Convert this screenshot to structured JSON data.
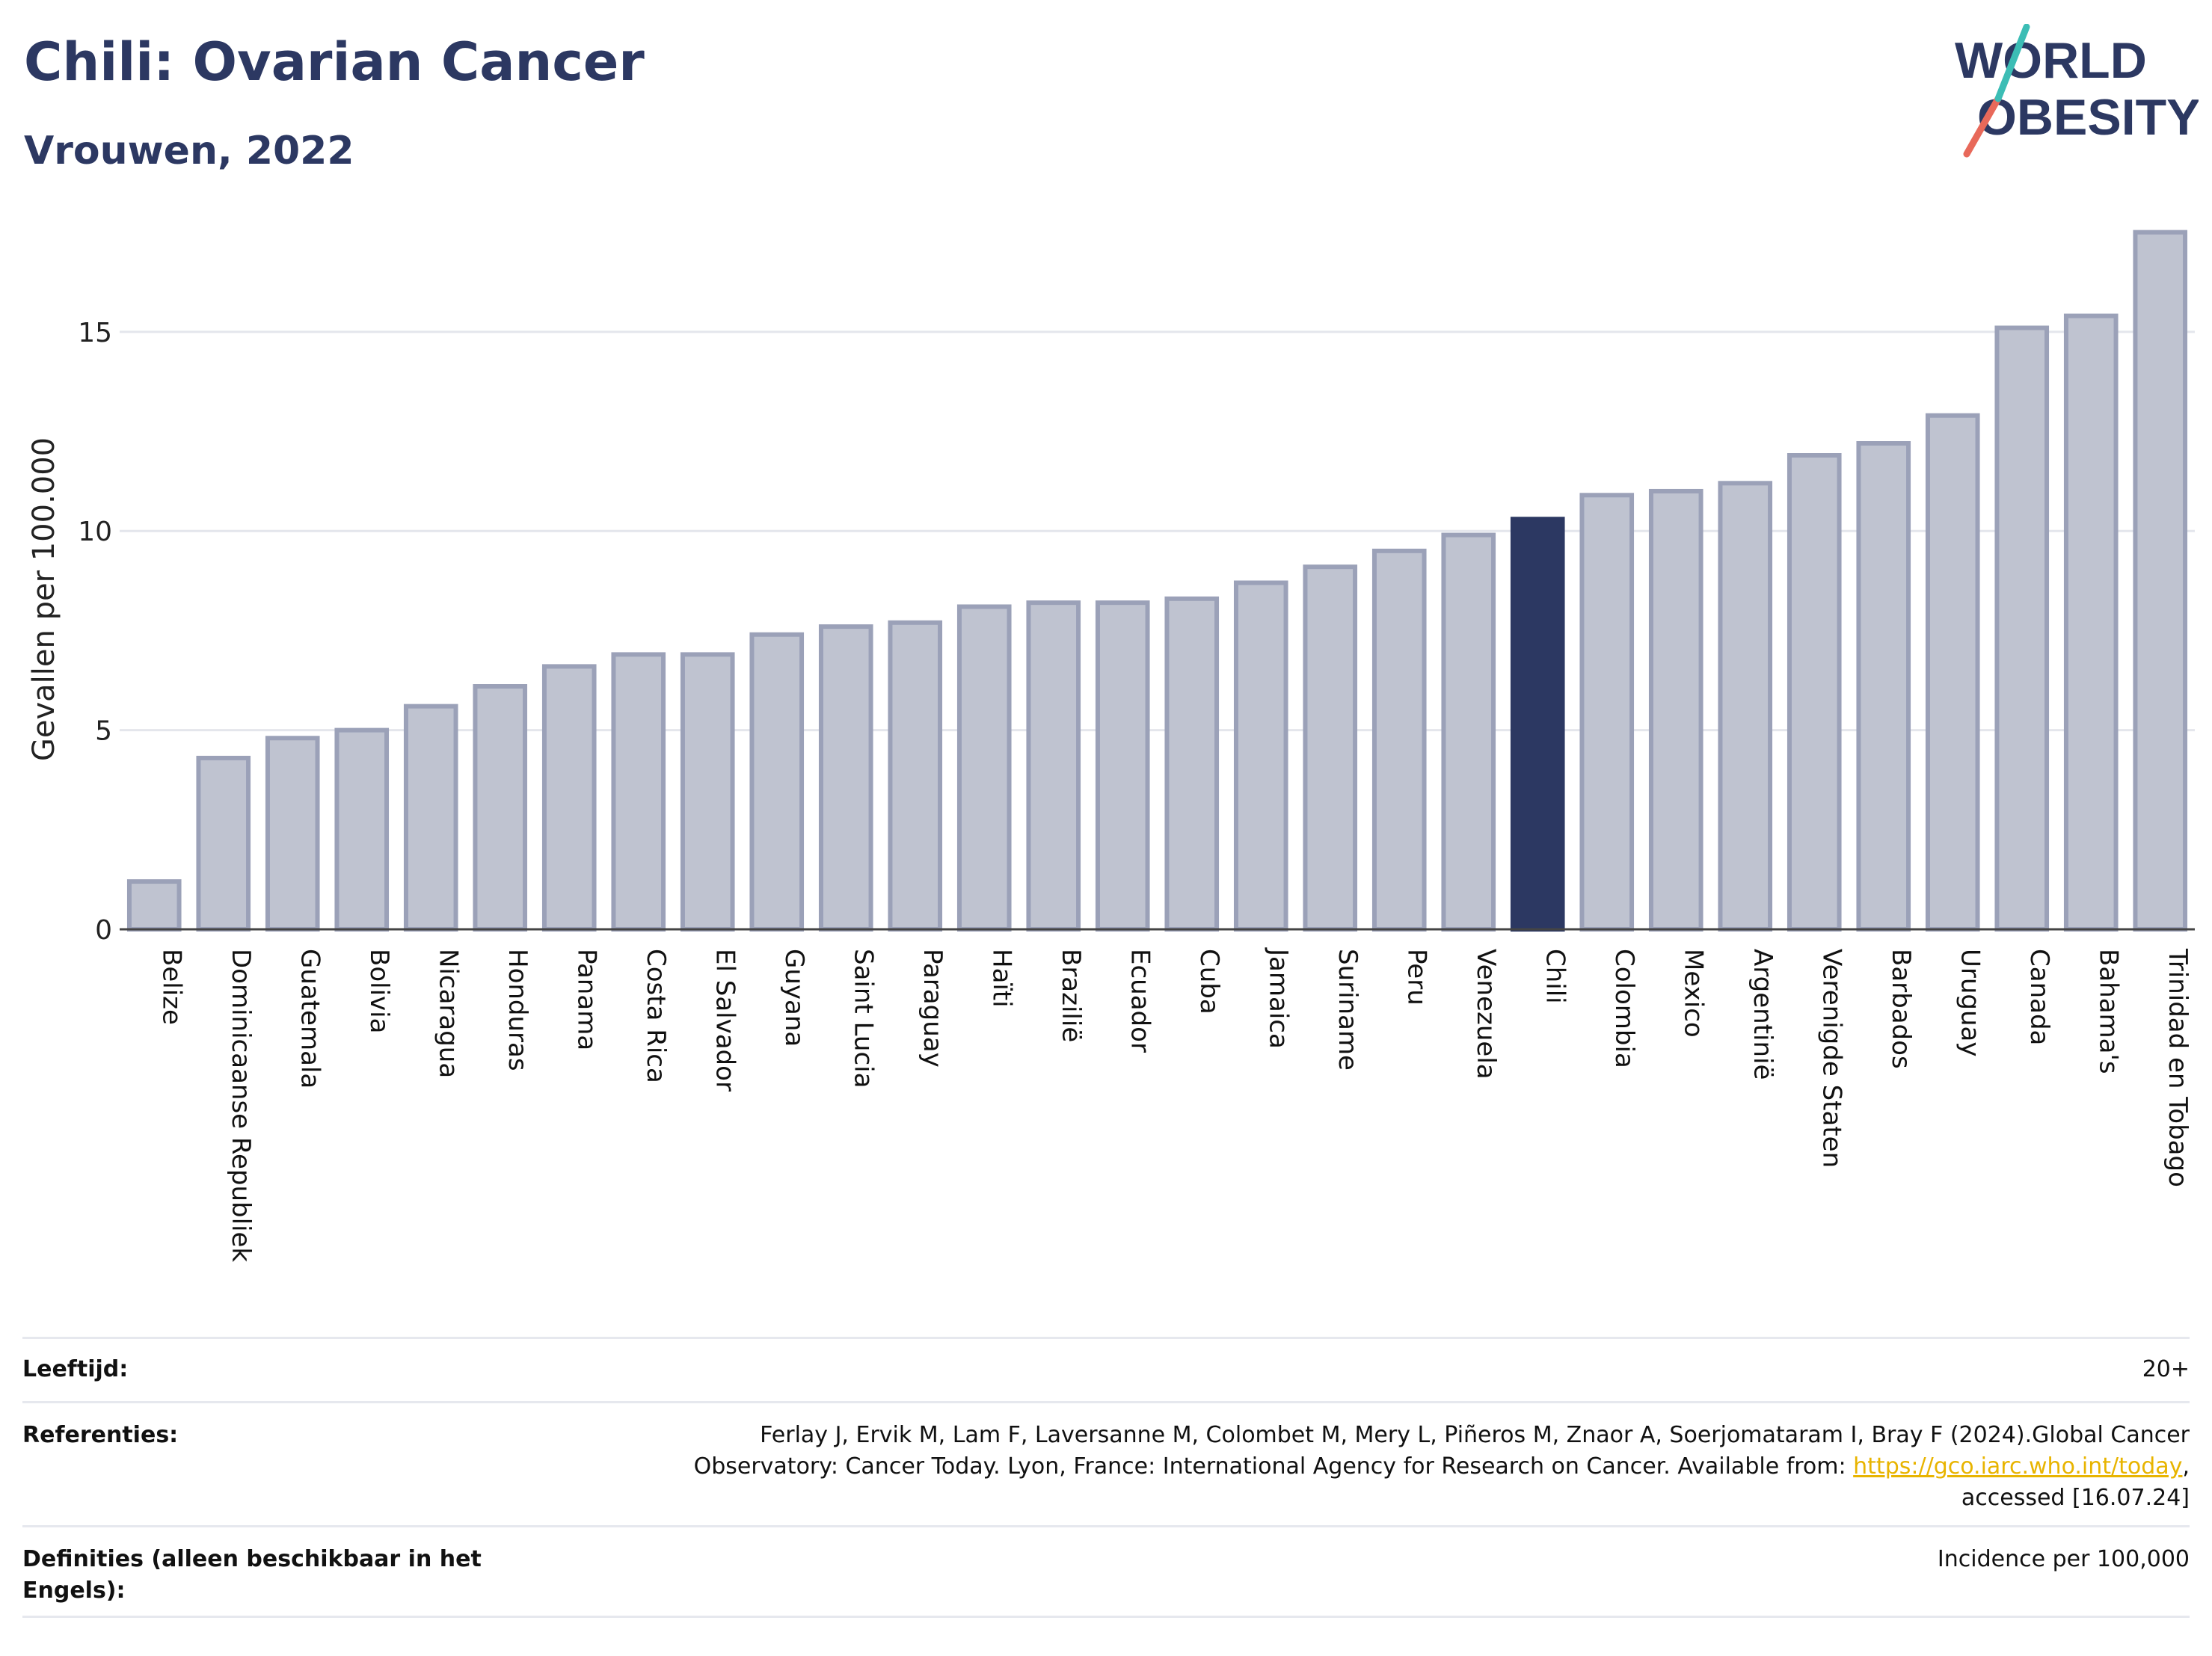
{
  "header": {
    "title": "Chili: Ovarian Cancer",
    "subtitle": "Vrouwen, 2022",
    "logo_line1": "WORLD",
    "logo_line2": "OBESITY"
  },
  "chart_data": {
    "type": "bar",
    "title": "Chili: Ovarian Cancer",
    "subtitle": "Vrouwen, 2022",
    "xlabel": "",
    "ylabel": "Gevallen per 100.000",
    "ylim": [
      0,
      17.7
    ],
    "yticks": [
      0,
      5,
      10,
      15
    ],
    "grid": true,
    "highlight": "Chili",
    "colors": {
      "default": "#bfc3d0",
      "default_border": "#9ba1b8",
      "highlight": "#2c3862"
    },
    "categories": [
      "Belize",
      "Dominicaanse Republiek",
      "Guatemala",
      "Bolivia",
      "Nicaragua",
      "Honduras",
      "Panama",
      "Costa Rica",
      "El Salvador",
      "Guyana",
      "Saint Lucia",
      "Paraguay",
      "Haïti",
      "Brazilië",
      "Ecuador",
      "Cuba",
      "Jamaica",
      "Suriname",
      "Peru",
      "Venezuela",
      "Chili",
      "Colombia",
      "Mexico",
      "Argentinië",
      "Verenigde Staten",
      "Barbados",
      "Uruguay",
      "Canada",
      "Bahama's",
      "Trinidad en Tobago"
    ],
    "values": [
      1.2,
      4.3,
      4.8,
      5.0,
      5.6,
      6.1,
      6.6,
      6.9,
      6.9,
      7.4,
      7.6,
      7.7,
      8.1,
      8.2,
      8.2,
      8.3,
      8.7,
      9.1,
      9.5,
      9.9,
      10.3,
      10.9,
      11.0,
      11.2,
      11.9,
      12.2,
      12.9,
      15.1,
      15.4,
      17.5
    ]
  },
  "footer": {
    "age_label": "Leeftijd:",
    "age_value": "20+",
    "ref_label": "Referenties:",
    "ref_line1": "Ferlay J, Ervik M, Lam F, Laversanne M, Colombet M, Mery L, Piñeros M, Znaor A, Soerjomataram I, Bray F (2024).Global Cancer",
    "ref_line2_pre": "Observatory: Cancer Today. Lyon, France: International Agency for Research on Cancer. Available from: ",
    "ref_link": "https://gco.iarc.who.int/today",
    "ref_line2_post": ",",
    "ref_line3": "accessed [16.07.24]",
    "def_label": "Definities (alleen beschikbaar in het Engels):",
    "def_value": "Incidence per 100,000"
  }
}
